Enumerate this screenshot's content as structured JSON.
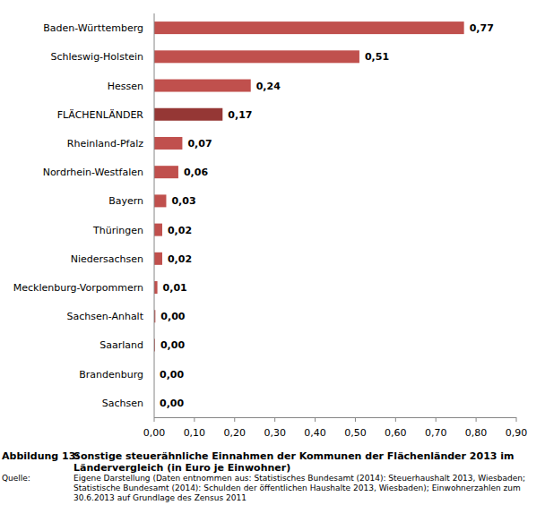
{
  "chart_data": {
    "type": "bar",
    "orientation": "horizontal",
    "figure_label": "Abbildung 13:",
    "title": "Sonstige steuerähnliche Einnahmen der Kommunen der Flächenländer 2013 im Ländervergleich (in Euro je Einwohner)",
    "source_label": "Quelle:",
    "source": "Eigene Darstellung (Daten entnommen aus: Statistisches Bundesamt (2014): Steuerhaushalt 2013, Wiesbaden; Statistische Bundesamt (2014): Schulden der öffentlichen Haushalte 2013, Wiesbaden); Einwohnerzahlen zum 30.6.2013 auf Grundlage des Zensus 2011",
    "categories": [
      "Baden-Württemberg",
      "Schleswig-Holstein",
      "Hessen",
      "FLÄCHENLÄNDER",
      "Rheinland-Pfalz",
      "Nordrhein-Westfalen",
      "Bayern",
      "Thüringen",
      "Niedersachsen",
      "Mecklenburg-Vorpommern",
      "Sachsen-Anhalt",
      "Saarland",
      "Brandenburg",
      "Sachsen"
    ],
    "values": [
      0.77,
      0.51,
      0.24,
      0.17,
      0.07,
      0.06,
      0.03,
      0.02,
      0.02,
      0.008,
      0.003,
      0.002,
      0,
      0
    ],
    "value_labels": [
      "0,77",
      "0,51",
      "0,24",
      "0,17",
      "0,07",
      "0,06",
      "0,03",
      "0,02",
      "0,02",
      "0,01",
      "0,00",
      "0,00",
      "0,00",
      "0,00"
    ],
    "colors": [
      "#c0504d",
      "#c0504d",
      "#c0504d",
      "#953735",
      "#c0504d",
      "#c0504d",
      "#c0504d",
      "#c0504d",
      "#c0504d",
      "#c0504d",
      "#c0504d",
      "#c0504d",
      "#c0504d",
      "#c0504d"
    ],
    "data_labels": true,
    "grid": false,
    "xlim": [
      0,
      0.9
    ],
    "xticks": [
      {
        "value": 0,
        "label": "0,00"
      },
      {
        "value": 0.1,
        "label": "0,10"
      },
      {
        "value": 0.2,
        "label": "0,20"
      },
      {
        "value": 0.3,
        "label": "0,30"
      },
      {
        "value": 0.4,
        "label": "0,40"
      },
      {
        "value": 0.5,
        "label": "0,50"
      },
      {
        "value": 0.6,
        "label": "0,60"
      },
      {
        "value": 0.7,
        "label": "0,70"
      },
      {
        "value": 0.8,
        "label": "0,80"
      },
      {
        "value": 0.9,
        "label": "0,90"
      }
    ]
  }
}
